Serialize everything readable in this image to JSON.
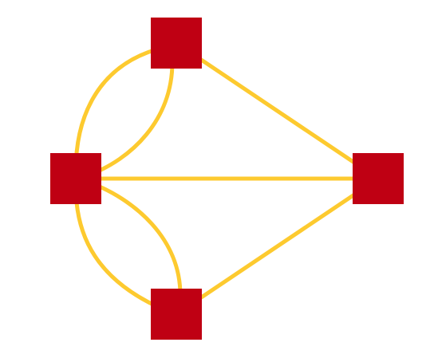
{
  "diagram": {
    "type": "multigraph",
    "colors": {
      "node": "#bf0013",
      "edge": "#fdca2f",
      "background": "#ffffff"
    },
    "nodes": [
      {
        "id": "top"
      },
      {
        "id": "left"
      },
      {
        "id": "right"
      },
      {
        "id": "bottom"
      }
    ],
    "edges": [
      {
        "from": "top",
        "to": "left",
        "curve": "outer"
      },
      {
        "from": "top",
        "to": "left",
        "curve": "inner"
      },
      {
        "from": "top",
        "to": "right",
        "curve": "straight"
      },
      {
        "from": "left",
        "to": "right",
        "curve": "straight"
      },
      {
        "from": "left",
        "to": "bottom",
        "curve": "outer"
      },
      {
        "from": "left",
        "to": "bottom",
        "curve": "inner"
      },
      {
        "from": "bottom",
        "to": "right",
        "curve": "straight"
      }
    ]
  }
}
